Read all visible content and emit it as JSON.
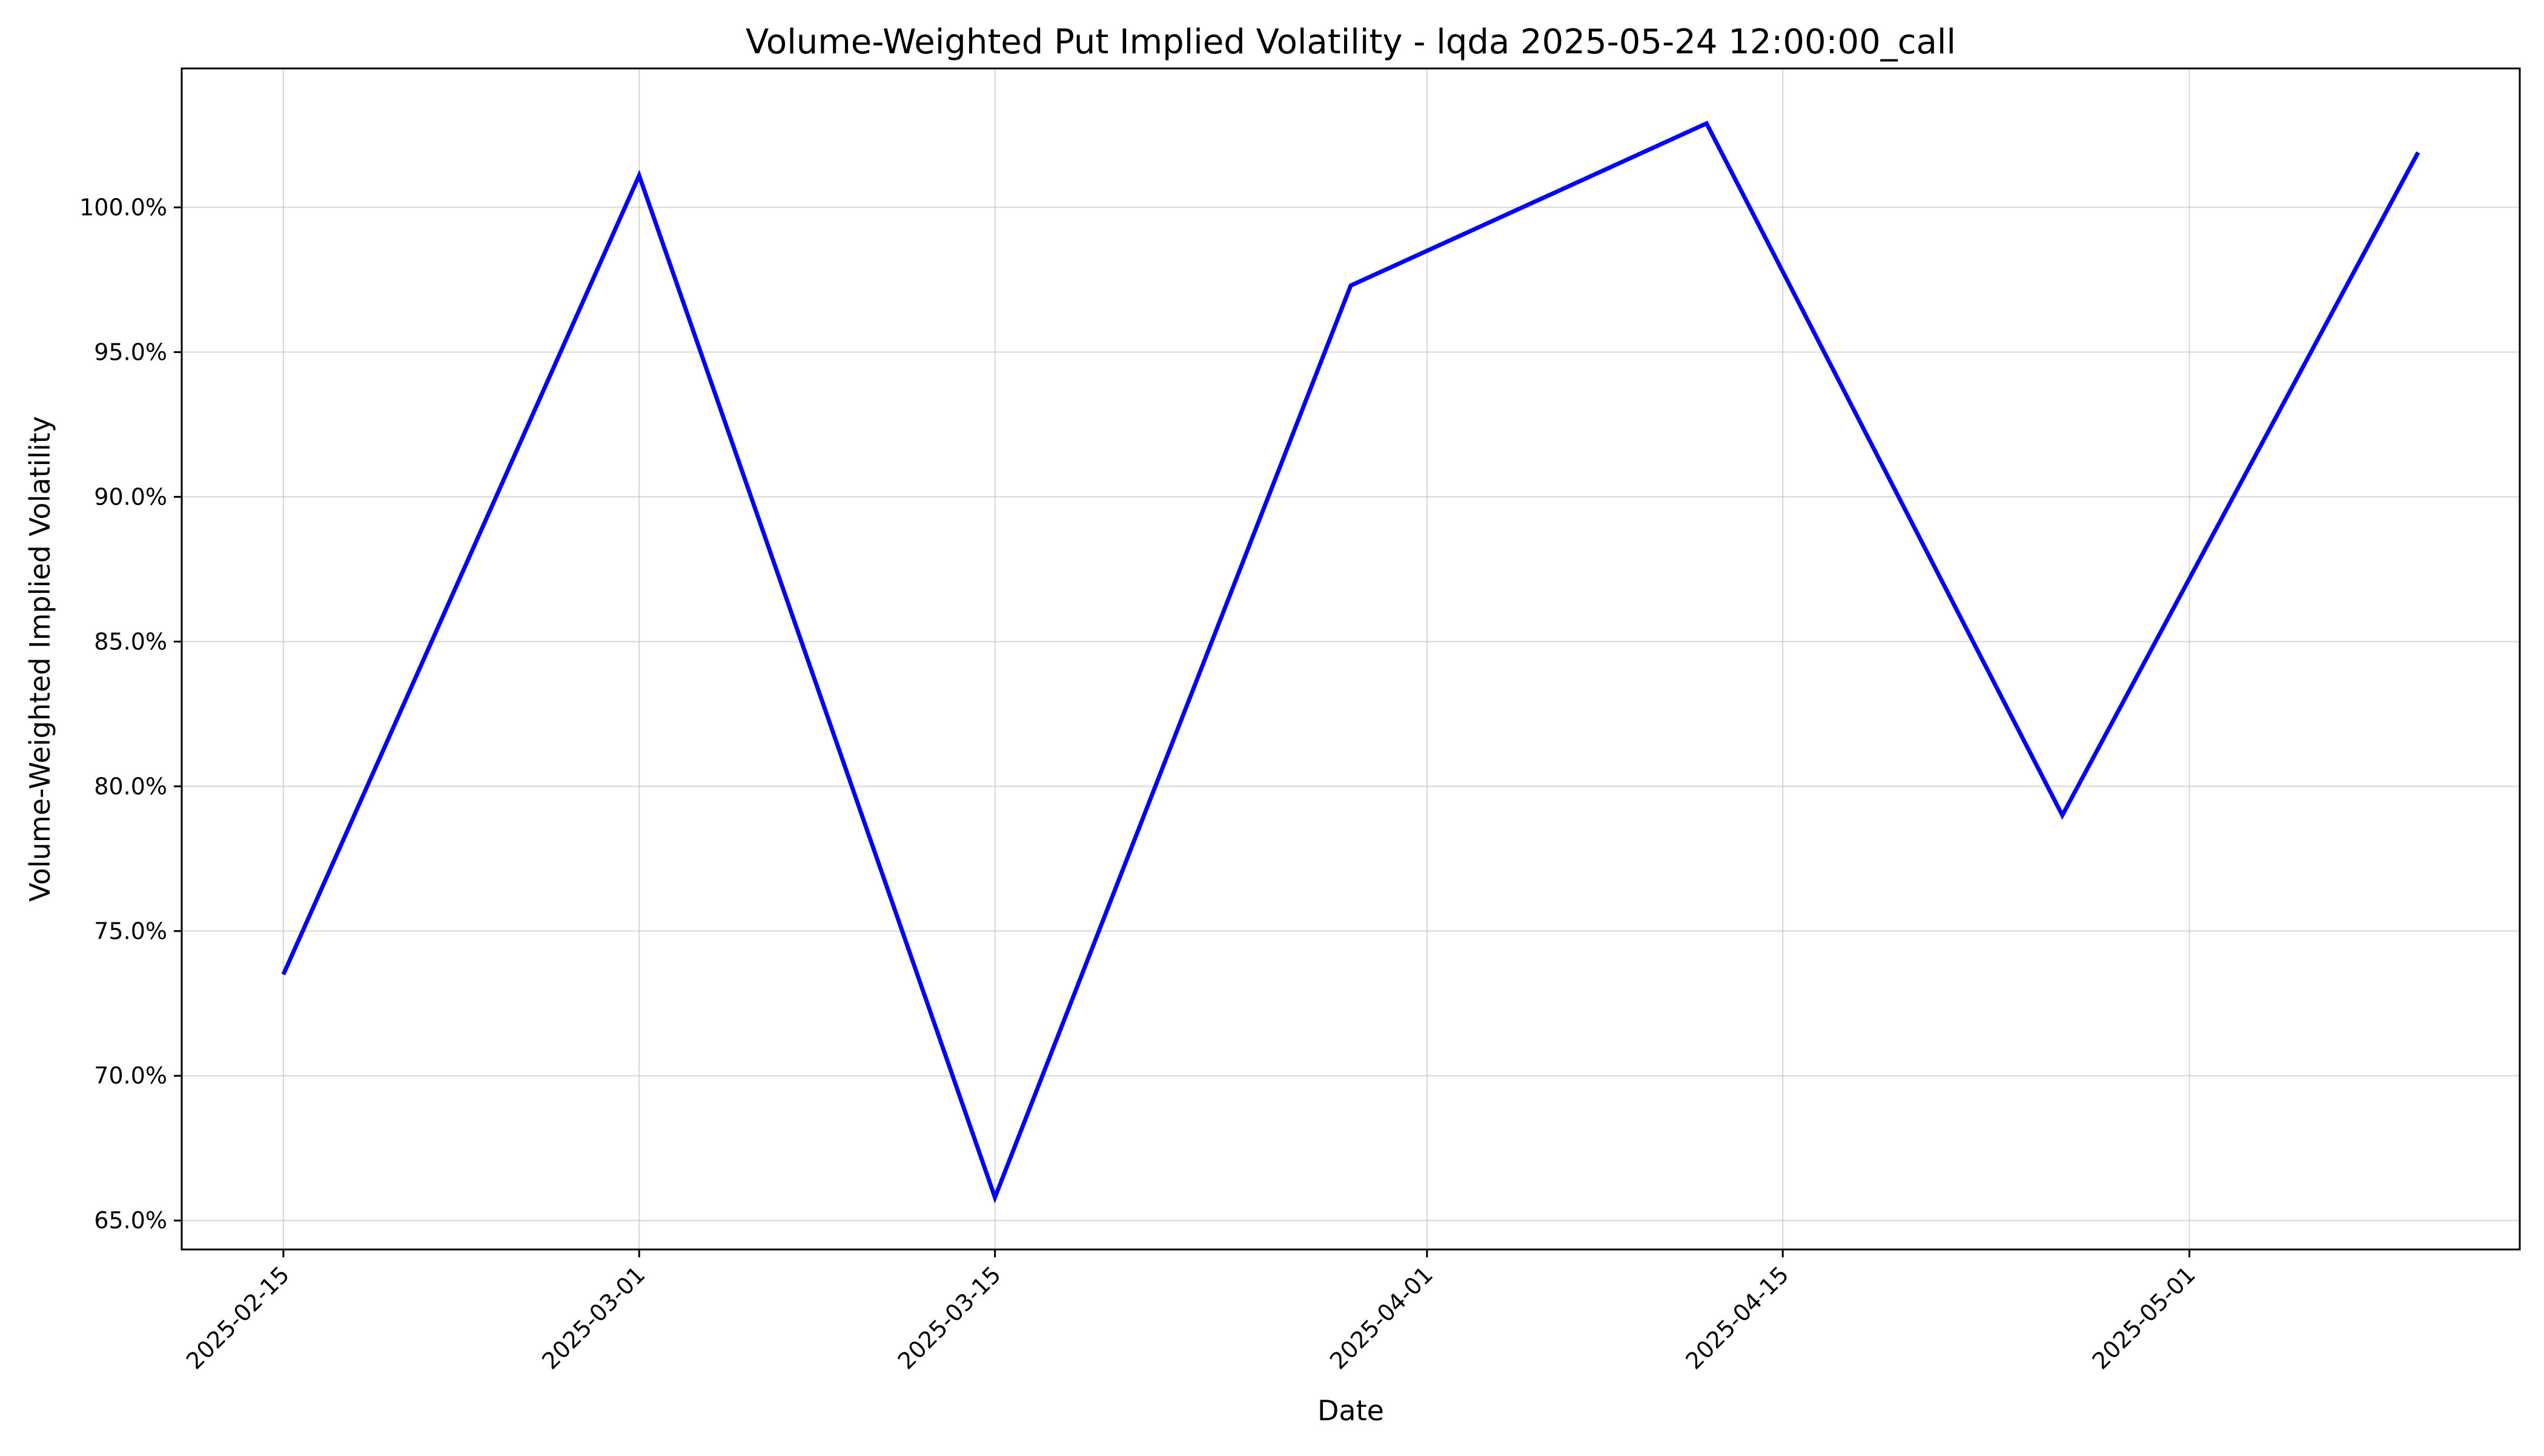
{
  "chart_data": {
    "type": "line",
    "title": "Volume-Weighted Put Implied Volatility - lqda 2025-05-24 12:00:00_call",
    "xlabel": "Date",
    "ylabel": "Volume-Weighted Implied Volatility",
    "x_tick_labels": [
      "2025-02-15",
      "2025-03-01",
      "2025-03-15",
      "2025-04-01",
      "2025-04-15",
      "2025-05-01"
    ],
    "y_tick_labels": [
      "65.0%",
      "70.0%",
      "75.0%",
      "80.0%",
      "85.0%",
      "90.0%",
      "95.0%",
      "100.0%"
    ],
    "y_ticks": [
      65,
      70,
      75,
      80,
      85,
      90,
      95,
      100
    ],
    "ylim": [
      64.0,
      104.8
    ],
    "xlim": [
      "2025-02-11",
      "2025-05-14"
    ],
    "grid": true,
    "legend": "none",
    "series": [
      {
        "color": "#0000ff",
        "x": [
          "2025-02-15",
          "2025-03-01",
          "2025-03-15",
          "2025-03-29",
          "2025-04-12",
          "2025-04-26",
          "2025-05-10"
        ],
        "y": [
          73.5,
          101.1,
          65.8,
          97.3,
          102.9,
          79.0,
          101.9
        ]
      }
    ]
  }
}
